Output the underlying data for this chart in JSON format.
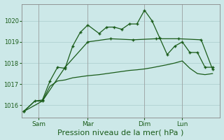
{
  "background_color": "#cce8e8",
  "grid_color": "#aacccc",
  "line_color": "#1a5c1a",
  "xlabel": "Pression niveau de la mer( hPa )",
  "xlabel_fontsize": 8,
  "ylim": [
    1015.4,
    1020.8
  ],
  "yticks": [
    1016,
    1017,
    1018,
    1019,
    1020
  ],
  "xtick_labels": [
    "Sam",
    "Mar",
    "Dim",
    "Lun"
  ],
  "xtick_positions": [
    0.08,
    0.34,
    0.64,
    0.84
  ],
  "figsize": [
    3.2,
    2.0
  ],
  "dpi": 100,
  "line1_t": [
    0.0,
    0.06,
    0.1,
    0.14,
    0.18,
    0.22,
    0.26,
    0.3,
    0.34,
    0.4,
    0.44,
    0.48,
    0.52,
    0.56,
    0.6,
    0.64,
    0.68,
    0.72,
    0.76,
    0.8,
    0.84,
    0.88,
    0.92,
    0.96,
    1.0
  ],
  "line1_y": [
    1015.7,
    1016.2,
    1016.25,
    1017.15,
    1017.8,
    1017.75,
    1018.8,
    1019.45,
    1019.8,
    1019.4,
    1019.7,
    1019.7,
    1019.6,
    1019.85,
    1019.85,
    1020.5,
    1020.0,
    1019.2,
    1018.4,
    1018.8,
    1019.0,
    1018.5,
    1018.5,
    1017.8,
    1017.8
  ],
  "line2_t": [
    0.0,
    0.06,
    0.1,
    0.14,
    0.18,
    0.22,
    0.26,
    0.3,
    0.34,
    0.4,
    0.44,
    0.48,
    0.52,
    0.56,
    0.6,
    0.64,
    0.68,
    0.72,
    0.76,
    0.8,
    0.84,
    0.88,
    0.92,
    0.96,
    1.0
  ],
  "line2_y": [
    1015.7,
    1016.2,
    1016.2,
    1016.9,
    1017.15,
    1017.2,
    1017.3,
    1017.35,
    1017.4,
    1017.45,
    1017.5,
    1017.55,
    1017.6,
    1017.65,
    1017.68,
    1017.72,
    1017.78,
    1017.85,
    1017.92,
    1018.0,
    1018.1,
    1017.75,
    1017.5,
    1017.45,
    1017.5
  ],
  "line3_t": [
    0.0,
    0.1,
    0.22,
    0.34,
    0.46,
    0.58,
    0.7,
    0.82,
    0.94,
    1.0
  ],
  "line3_y": [
    1015.7,
    1016.2,
    1017.8,
    1019.0,
    1019.15,
    1019.1,
    1019.15,
    1019.15,
    1019.1,
    1017.7
  ]
}
